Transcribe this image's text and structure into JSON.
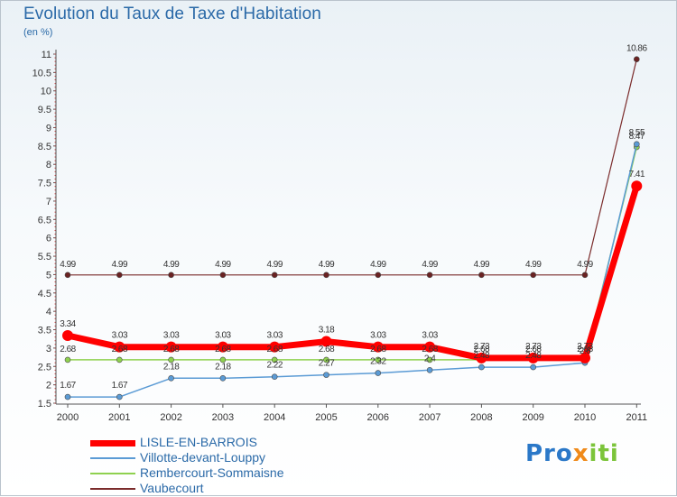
{
  "title": "Evolution du Taux de Taxe d'Habitation",
  "unit_label": "(en %)",
  "logo": {
    "part1": "Pro",
    "part2": "x",
    "part3": "iti"
  },
  "chart_data": {
    "type": "line",
    "title": "Evolution du Taux de Taxe d'Habitation",
    "ylabel": "(en %)",
    "xlabel": "",
    "x": [
      "2000",
      "2001",
      "2002",
      "2003",
      "2004",
      "2005",
      "2006",
      "2007",
      "2008",
      "2009",
      "2010",
      "2011"
    ],
    "ylim": [
      1.5,
      11
    ],
    "yticks": [
      "1.5",
      "2",
      "2.5",
      "3",
      "3.5",
      "4",
      "4.5",
      "5",
      "5.5",
      "6",
      "6.5",
      "7",
      "7.5",
      "8",
      "8.5",
      "9",
      "9.5",
      "10",
      "10.5",
      "11"
    ],
    "grid": false,
    "legend_position": "bottom-left",
    "series": [
      {
        "name": "LISLE-EN-BARROIS",
        "color": "#ff0000",
        "values": [
          3.34,
          3.03,
          3.03,
          3.03,
          3.03,
          3.18,
          3.03,
          3.03,
          2.73,
          2.73,
          2.73,
          7.41
        ],
        "labels": [
          "3.34",
          "3.03",
          "3.03",
          "3.03",
          "3.03",
          "3.18",
          "3.03",
          "3.03",
          "2.73",
          "2.73",
          "2.73",
          "7.41"
        ]
      },
      {
        "name": "Villotte-devant-Louppy",
        "color": "#5b9bd5",
        "values": [
          1.67,
          1.67,
          2.18,
          2.18,
          2.22,
          2.27,
          2.32,
          2.4,
          2.48,
          2.48,
          2.6,
          8.55
        ],
        "labels": [
          "1.67",
          "1.67",
          "2.18",
          "2.18",
          "2.22",
          "2.27",
          "2.32",
          "2.4",
          "2.48",
          "2.48",
          "2.6",
          "8.55"
        ]
      },
      {
        "name": "Rembercourt-Sommaisne",
        "color": "#8fd14f",
        "values": [
          2.68,
          2.68,
          2.68,
          2.68,
          2.68,
          2.68,
          2.68,
          2.68,
          2.68,
          2.68,
          2.68,
          8.47
        ],
        "labels": [
          "2.68",
          "2.68",
          "2.68",
          "2.68",
          "2.68",
          "2.68",
          "2.68",
          "2.68",
          "2.68",
          "2.68",
          "2.68",
          "8.47"
        ]
      },
      {
        "name": "Vaubecourt",
        "color": "#7b2c2c",
        "values": [
          4.99,
          4.99,
          4.99,
          4.99,
          4.99,
          4.99,
          4.99,
          4.99,
          4.99,
          4.99,
          4.99,
          10.86
        ],
        "labels": [
          "4.99",
          "4.99",
          "4.99",
          "4.99",
          "4.99",
          "4.99",
          "4.99",
          "4.99",
          "4.99",
          "4.99",
          "4.99",
          "10.86"
        ]
      }
    ]
  }
}
